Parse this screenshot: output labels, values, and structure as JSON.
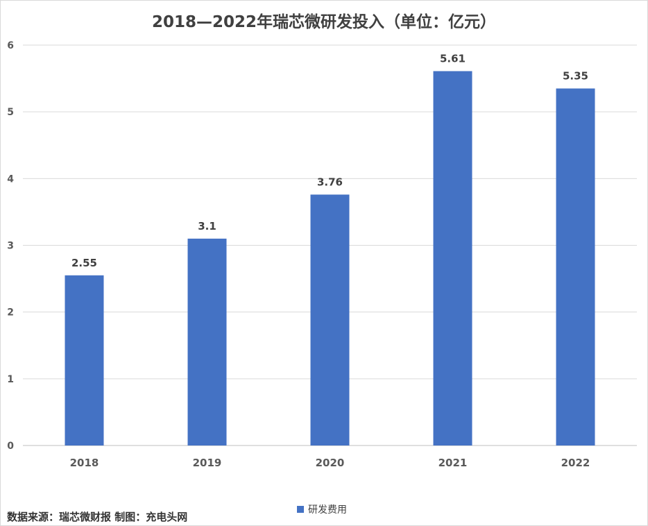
{
  "chart_data": {
    "type": "bar",
    "title": "2018—2022年瑞芯微研发投入（单位：亿元）",
    "categories": [
      "2018",
      "2019",
      "2020",
      "2021",
      "2022"
    ],
    "series": [
      {
        "name": "研发费用",
        "values": [
          2.55,
          3.1,
          3.76,
          5.61,
          5.35
        ]
      }
    ],
    "data_labels": [
      "2.55",
      "3.1",
      "3.76",
      "5.61",
      "5.35"
    ],
    "ylim": [
      0,
      6
    ],
    "yticks": [
      "0",
      "1",
      "2",
      "3",
      "4",
      "5",
      "6"
    ],
    "grid": true,
    "legend_position": "bottom",
    "bar_color": "#4472c4"
  },
  "footer": {
    "source": "数据来源：瑞芯微财报  制图：充电头网"
  }
}
